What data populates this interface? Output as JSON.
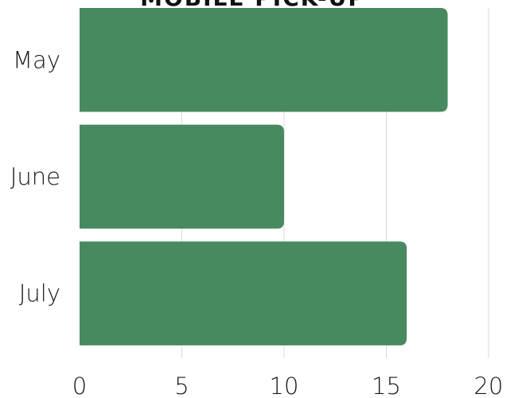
{
  "chart_data": {
    "type": "bar",
    "orientation": "horizontal",
    "title": "MOBILE PICK-UP",
    "categories": [
      "May",
      "June",
      "July"
    ],
    "values": [
      18,
      10,
      16
    ],
    "xlim": [
      0,
      20
    ],
    "xticks": [
      0,
      5,
      10,
      15,
      20
    ],
    "xlabel": "",
    "ylabel": "",
    "grid": "vertical",
    "legend": "none",
    "colors": {
      "bar": "#478a5f",
      "grid": "#d9d9d9",
      "text": "#1a1a1a"
    }
  }
}
